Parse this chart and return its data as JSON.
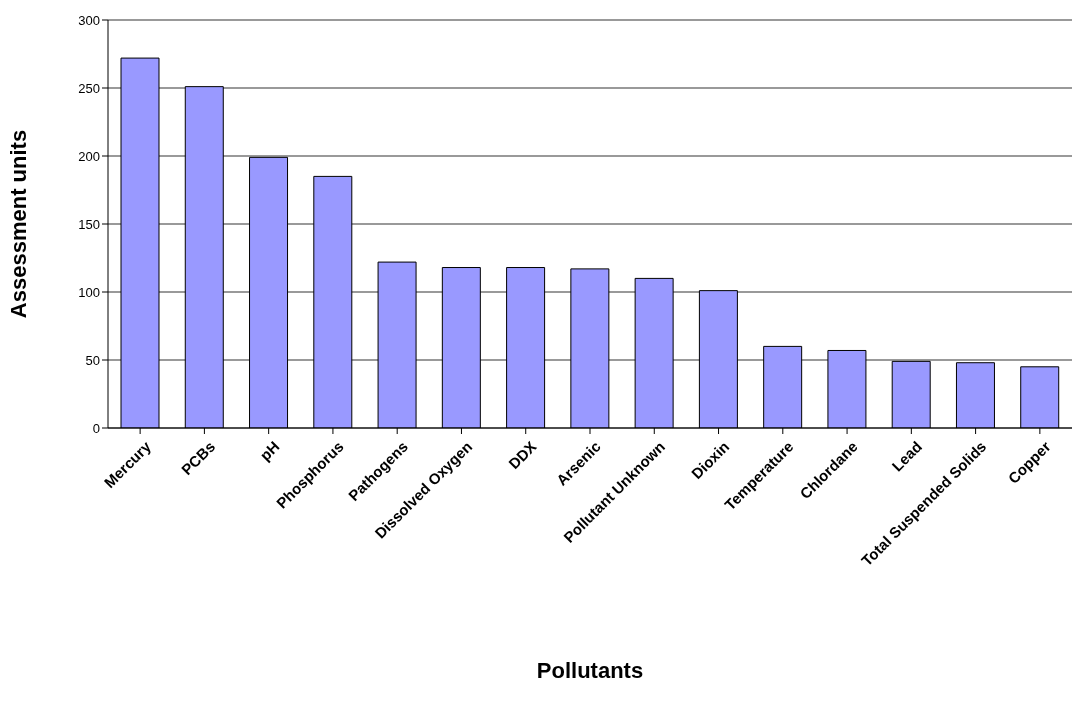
{
  "chart_data": {
    "type": "bar",
    "xlabel": "Pollutants",
    "ylabel": "Assessment units",
    "categories": [
      "Mercury",
      "PCBs",
      "pH",
      "Phosphorus",
      "Pathogens",
      "Dissolved Oxygen",
      "DDX",
      "Arsenic",
      "Pollutant Unknown",
      "Dioxin",
      "Temperature",
      "Chlordane",
      "Lead",
      "Total Suspended Solids",
      "Copper"
    ],
    "values": [
      272,
      251,
      199,
      185,
      122,
      118,
      118,
      117,
      110,
      101,
      60,
      57,
      49,
      48,
      45
    ],
    "color": "#9999ff",
    "ylim": [
      0,
      300
    ],
    "yticks": [
      0,
      50,
      100,
      150,
      200,
      250,
      300
    ],
    "grid": "y"
  }
}
